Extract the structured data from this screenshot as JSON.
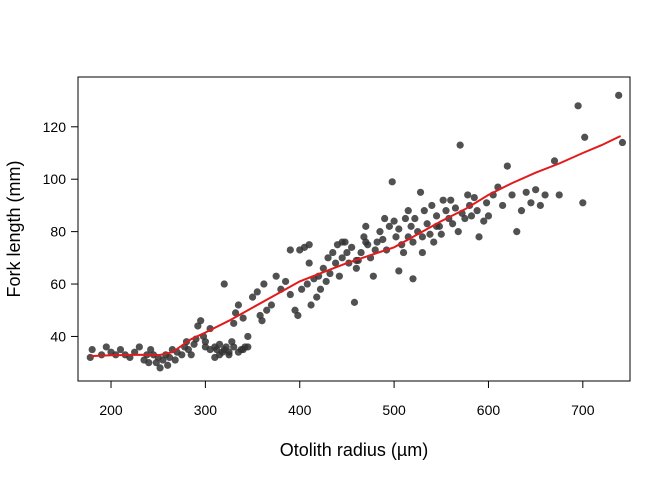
{
  "chart_data": {
    "type": "scatter",
    "title": "",
    "xlabel": "Otolith radius (µm)",
    "ylabel": "Fork length (mm)",
    "xlim": [
      165,
      750
    ],
    "ylim": [
      23,
      139
    ],
    "xticks": [
      200,
      300,
      400,
      500,
      600,
      700
    ],
    "yticks": [
      40,
      60,
      80,
      100,
      120
    ],
    "grid": false,
    "legend": "none",
    "colors": {
      "points": "#333333",
      "line": "#e31a1c"
    },
    "series": [
      {
        "type": "scatter",
        "points": [
          [
            178,
            32
          ],
          [
            180,
            35
          ],
          [
            190,
            33
          ],
          [
            195,
            36
          ],
          [
            200,
            34
          ],
          [
            205,
            33
          ],
          [
            210,
            35
          ],
          [
            215,
            33
          ],
          [
            220,
            32
          ],
          [
            225,
            34
          ],
          [
            230,
            36
          ],
          [
            235,
            31
          ],
          [
            238,
            33
          ],
          [
            240,
            30
          ],
          [
            242,
            35
          ],
          [
            245,
            33
          ],
          [
            248,
            30
          ],
          [
            250,
            32
          ],
          [
            252,
            28
          ],
          [
            255,
            31
          ],
          [
            258,
            33
          ],
          [
            260,
            29
          ],
          [
            262,
            32
          ],
          [
            265,
            35
          ],
          [
            268,
            31
          ],
          [
            270,
            34
          ],
          [
            275,
            33
          ],
          [
            278,
            36
          ],
          [
            280,
            38
          ],
          [
            282,
            35
          ],
          [
            285,
            33
          ],
          [
            288,
            37
          ],
          [
            290,
            39
          ],
          [
            292,
            44
          ],
          [
            295,
            46
          ],
          [
            298,
            40
          ],
          [
            300,
            38
          ],
          [
            305,
            43
          ],
          [
            310,
            36
          ],
          [
            312,
            35
          ],
          [
            315,
            33
          ],
          [
            318,
            34
          ],
          [
            320,
            60
          ],
          [
            322,
            36
          ],
          [
            325,
            34
          ],
          [
            328,
            38
          ],
          [
            330,
            45
          ],
          [
            332,
            49
          ],
          [
            335,
            52
          ],
          [
            338,
            35
          ],
          [
            340,
            47
          ],
          [
            342,
            36
          ],
          [
            345,
            40
          ],
          [
            350,
            55
          ],
          [
            355,
            57
          ],
          [
            358,
            48
          ],
          [
            360,
            46
          ],
          [
            362,
            60
          ],
          [
            365,
            50
          ],
          [
            370,
            52
          ],
          [
            375,
            63
          ],
          [
            380,
            58
          ],
          [
            385,
            61
          ],
          [
            390,
            56
          ],
          [
            395,
            50
          ],
          [
            398,
            48
          ],
          [
            400,
            73
          ],
          [
            402,
            58
          ],
          [
            405,
            74
          ],
          [
            408,
            60
          ],
          [
            410,
            68
          ],
          [
            412,
            52
          ],
          [
            415,
            62
          ],
          [
            418,
            55
          ],
          [
            420,
            63
          ],
          [
            422,
            58
          ],
          [
            425,
            66
          ],
          [
            428,
            61
          ],
          [
            430,
            70
          ],
          [
            432,
            64
          ],
          [
            435,
            72
          ],
          [
            438,
            68
          ],
          [
            440,
            75
          ],
          [
            442,
            63
          ],
          [
            445,
            70
          ],
          [
            448,
            76
          ],
          [
            450,
            72
          ],
          [
            452,
            68
          ],
          [
            455,
            74
          ],
          [
            458,
            53
          ],
          [
            460,
            66
          ],
          [
            462,
            69
          ],
          [
            465,
            72
          ],
          [
            468,
            78
          ],
          [
            470,
            82
          ],
          [
            472,
            75
          ],
          [
            475,
            70
          ],
          [
            478,
            63
          ],
          [
            480,
            73
          ],
          [
            482,
            76
          ],
          [
            485,
            80
          ],
          [
            488,
            77
          ],
          [
            490,
            85
          ],
          [
            492,
            73
          ],
          [
            495,
            82
          ],
          [
            498,
            99
          ],
          [
            500,
            84
          ],
          [
            502,
            78
          ],
          [
            505,
            81
          ],
          [
            508,
            75
          ],
          [
            510,
            72
          ],
          [
            512,
            85
          ],
          [
            515,
            78
          ],
          [
            518,
            82
          ],
          [
            520,
            76
          ],
          [
            522,
            85
          ],
          [
            525,
            80
          ],
          [
            528,
            95
          ],
          [
            530,
            78
          ],
          [
            532,
            88
          ],
          [
            535,
            83
          ],
          [
            538,
            79
          ],
          [
            540,
            90
          ],
          [
            542,
            76
          ],
          [
            545,
            86
          ],
          [
            548,
            82
          ],
          [
            550,
            79
          ],
          [
            552,
            92
          ],
          [
            555,
            88
          ],
          [
            558,
            85
          ],
          [
            560,
            92
          ],
          [
            562,
            83
          ],
          [
            565,
            89
          ],
          [
            568,
            80
          ],
          [
            570,
            113
          ],
          [
            572,
            87
          ],
          [
            575,
            85
          ],
          [
            578,
            94
          ],
          [
            580,
            90
          ],
          [
            582,
            86
          ],
          [
            585,
            93
          ],
          [
            588,
            88
          ],
          [
            590,
            78
          ],
          [
            595,
            84
          ],
          [
            598,
            91
          ],
          [
            600,
            86
          ],
          [
            605,
            94
          ],
          [
            610,
            97
          ],
          [
            615,
            90
          ],
          [
            620,
            105
          ],
          [
            625,
            94
          ],
          [
            630,
            80
          ],
          [
            635,
            88
          ],
          [
            640,
            95
          ],
          [
            645,
            91
          ],
          [
            650,
            96
          ],
          [
            655,
            90
          ],
          [
            660,
            94
          ],
          [
            670,
            107
          ],
          [
            675,
            94
          ],
          [
            695,
            128
          ],
          [
            700,
            91
          ],
          [
            702,
            116
          ],
          [
            738,
            132
          ],
          [
            742,
            114
          ],
          [
            520,
            62
          ],
          [
            530,
            72
          ],
          [
            470,
            76
          ],
          [
            445,
            76
          ],
          [
            505,
            65
          ],
          [
            390,
            73
          ],
          [
            410,
            75
          ],
          [
            460,
            69
          ],
          [
            515,
            88
          ],
          [
            545,
            82
          ],
          [
            300,
            36
          ],
          [
            305,
            35
          ],
          [
            315,
            37
          ],
          [
            325,
            33
          ],
          [
            335,
            34
          ],
          [
            330,
            36
          ],
          [
            310,
            32
          ],
          [
            320,
            35
          ],
          [
            340,
            35
          ],
          [
            345,
            36
          ]
        ]
      },
      {
        "type": "line",
        "name": "",
        "points": [
          [
            178,
            32.5
          ],
          [
            200,
            32.8
          ],
          [
            230,
            33.0
          ],
          [
            250,
            32.8
          ],
          [
            265,
            34.0
          ],
          [
            285,
            39.0
          ],
          [
            300,
            41.5
          ],
          [
            325,
            46.0
          ],
          [
            350,
            51.0
          ],
          [
            375,
            56.0
          ],
          [
            400,
            61.0
          ],
          [
            425,
            64.5
          ],
          [
            450,
            68.0
          ],
          [
            475,
            71.0
          ],
          [
            500,
            74.0
          ],
          [
            525,
            79.0
          ],
          [
            550,
            84.0
          ],
          [
            575,
            88.5
          ],
          [
            600,
            94.0
          ],
          [
            625,
            98.5
          ],
          [
            650,
            102.5
          ],
          [
            675,
            106.0
          ],
          [
            700,
            110.0
          ],
          [
            720,
            113.0
          ],
          [
            740,
            116.5
          ]
        ]
      }
    ]
  }
}
